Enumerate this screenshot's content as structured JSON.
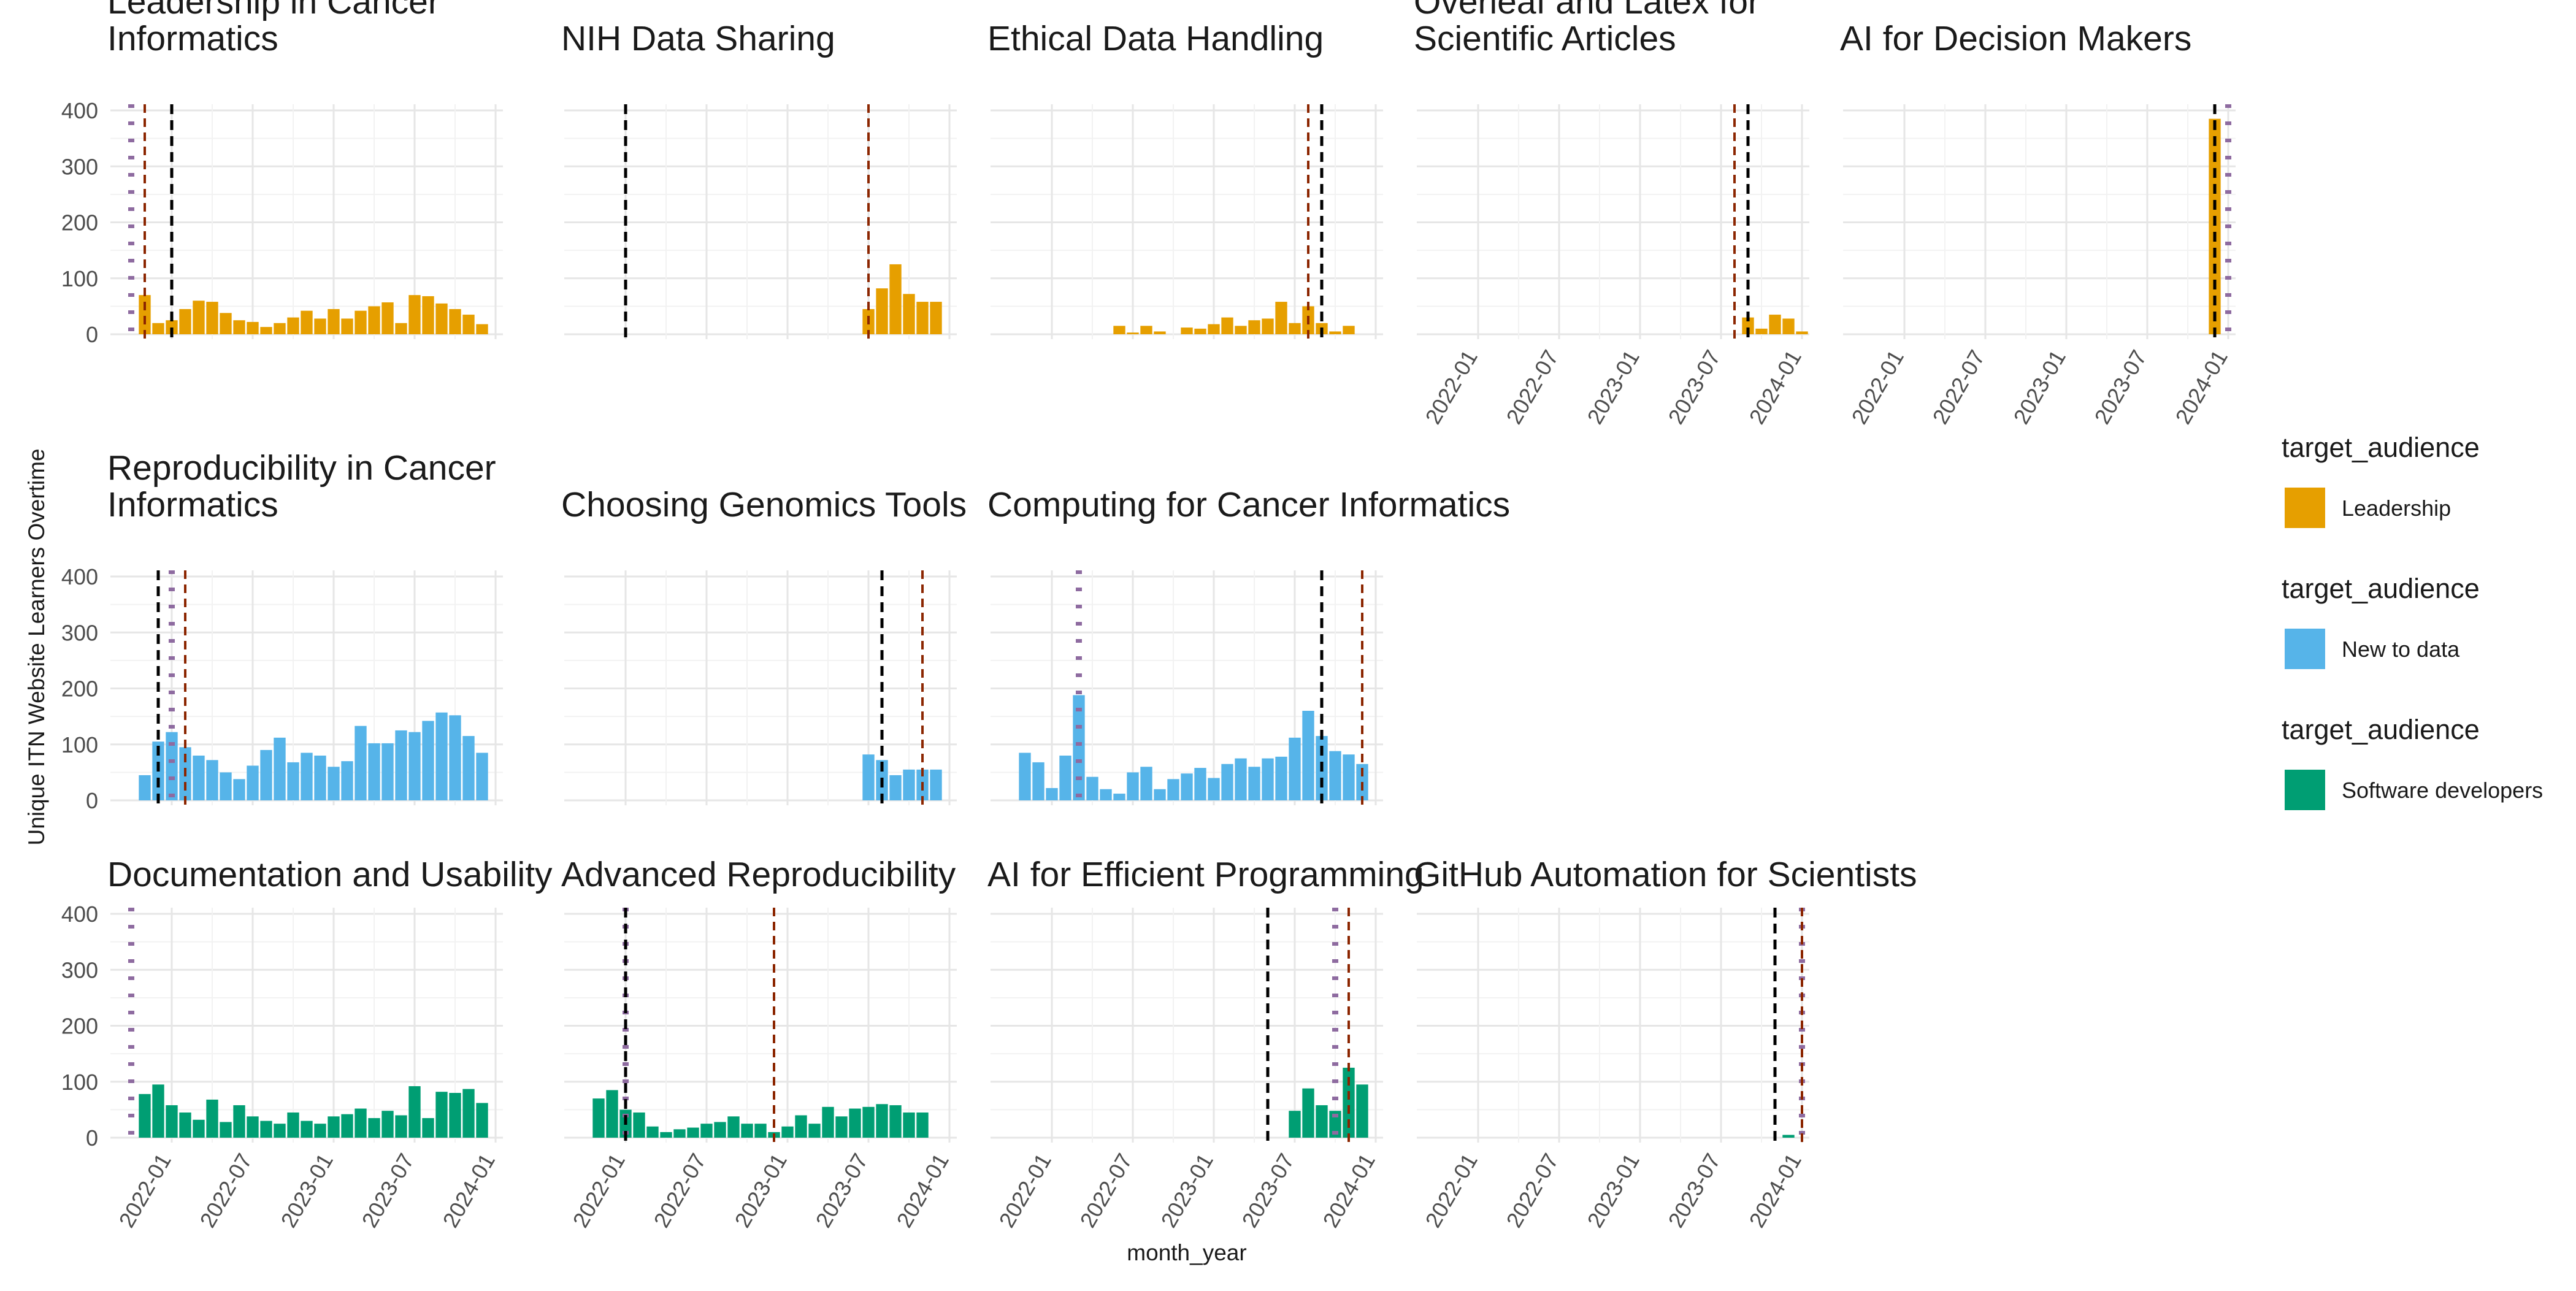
{
  "chart_data": {
    "type": "bar",
    "ylabel": "Unique ITN Website Learners Overtime",
    "xlabel": "month_year",
    "ylim": [
      0,
      400
    ],
    "y_ticks": [
      0,
      100,
      200,
      300,
      400
    ],
    "x_ticks": [
      "2022-01",
      "2022-07",
      "2023-01",
      "2023-07",
      "2024-01"
    ],
    "x_range": [
      "2021-09",
      "2024-01"
    ],
    "grid": true,
    "legend_position": "right",
    "legend": [
      {
        "title": "target_audience",
        "label": "Leadership",
        "color": "#E69F00"
      },
      {
        "title": "target_audience",
        "label": "New to data",
        "color": "#56B4E9"
      },
      {
        "title": "target_audience",
        "label": "Software developers",
        "color": "#009E73"
      }
    ],
    "line_colors": {
      "black": "#000000",
      "red": "#8B2500",
      "purple": "#8E6BA0"
    },
    "panels": [
      {
        "title": "Leadership in Cancer\nInformatics",
        "audience": "Leadership",
        "bars": {
          "start": "2021-11",
          "values": [
            70,
            20,
            25,
            45,
            60,
            58,
            38,
            25,
            22,
            13,
            20,
            30,
            42,
            28,
            45,
            28,
            42,
            50,
            57,
            20,
            70,
            68,
            55,
            45,
            35,
            18
          ]
        },
        "vlines": {
          "black": "2022-01",
          "red": "2021-11",
          "purple": "2021-10"
        }
      },
      {
        "title": "NIH Data Sharing",
        "audience": "Leadership",
        "bars": {
          "start": "2023-07",
          "values": [
            45,
            82,
            125,
            72,
            58,
            58
          ]
        },
        "vlines": {
          "black": "2022-01",
          "red": "2023-07"
        }
      },
      {
        "title": "Ethical Data Handling",
        "audience": "Leadership",
        "bars": {
          "start": "2022-06",
          "values": [
            15,
            3,
            15,
            5,
            0,
            12,
            10,
            18,
            30,
            15,
            25,
            28,
            58,
            20,
            50,
            20,
            5,
            15
          ]
        },
        "vlines": {
          "black": "2023-09",
          "red": "2023-08"
        }
      },
      {
        "title": "Overleaf and Latex for\nScientific Articles",
        "audience": "Leadership",
        "bars": {
          "start": "2023-09",
          "values": [
            30,
            10,
            35,
            28,
            5
          ]
        },
        "vlines": {
          "black": "2023-09",
          "red": "2023-08"
        }
      },
      {
        "title": "AI for Decision Makers",
        "audience": "Leadership",
        "bars": {
          "start": "2023-12",
          "values": [
            385
          ]
        },
        "vlines": {
          "black": "2023-12",
          "purple": "2024-01"
        }
      },
      {
        "title": "Reproducibility in Cancer\nInformatics",
        "audience": "New to data",
        "bars": {
          "start": "2021-11",
          "values": [
            45,
            105,
            122,
            95,
            80,
            72,
            50,
            38,
            62,
            90,
            112,
            68,
            85,
            80,
            60,
            70,
            133,
            102,
            102,
            125,
            122,
            142,
            157,
            152,
            115,
            85
          ]
        },
        "vlines": {
          "black": "2021-12",
          "red": "2022-02",
          "purple": "2022-01"
        }
      },
      {
        "title": "Choosing Genomics Tools",
        "audience": "New to data",
        "bars": {
          "start": "2023-07",
          "values": [
            82,
            72,
            45,
            55,
            55,
            55
          ]
        },
        "vlines": {
          "black": "2023-08",
          "red": "2023-11"
        }
      },
      {
        "title": "Computing for Cancer Informatics",
        "audience": "New to data",
        "bars": {
          "start": "2021-11",
          "values": [
            85,
            68,
            22,
            80,
            188,
            42,
            20,
            12,
            50,
            60,
            20,
            38,
            48,
            58,
            40,
            65,
            75,
            60,
            75,
            78,
            112,
            160,
            115,
            88,
            82,
            65
          ]
        },
        "vlines": {
          "black": "2023-09",
          "red": "2023-12",
          "purple": "2022-03"
        }
      },
      {
        "title": "Documentation and Usability",
        "audience": "Software developers",
        "bars": {
          "start": "2021-11",
          "values": [
            78,
            95,
            58,
            45,
            32,
            68,
            28,
            58,
            38,
            30,
            25,
            45,
            30,
            25,
            38,
            42,
            52,
            35,
            48,
            40,
            92,
            35,
            82,
            80,
            87,
            62
          ]
        },
        "vlines": {
          "purple": "2021-10"
        }
      },
      {
        "title": "Advanced Reproducibility",
        "audience": "Software developers",
        "bars": {
          "start": "2021-11",
          "values": [
            70,
            85,
            50,
            45,
            20,
            10,
            15,
            18,
            25,
            28,
            38,
            25,
            25,
            10,
            20,
            40,
            25,
            55,
            38,
            52,
            55,
            60,
            58,
            45,
            45
          ]
        },
        "vlines": {
          "black": "2022-01",
          "red": "2022-12",
          "purple": "2022-01"
        }
      },
      {
        "title": "AI for Efficient Programming",
        "audience": "Software developers",
        "bars": {
          "start": "2023-07",
          "values": [
            48,
            88,
            58,
            48,
            125,
            95
          ]
        },
        "vlines": {
          "black": "2023-05",
          "red": "2023-11",
          "purple": "2023-10"
        }
      },
      {
        "title": "GitHub Automation for Scientists",
        "audience": "Software developers",
        "bars": {
          "start": "2023-12",
          "values": [
            5
          ]
        },
        "vlines": {
          "black": "2023-11",
          "red": "2024-01",
          "purple": "2024-01"
        }
      }
    ]
  }
}
